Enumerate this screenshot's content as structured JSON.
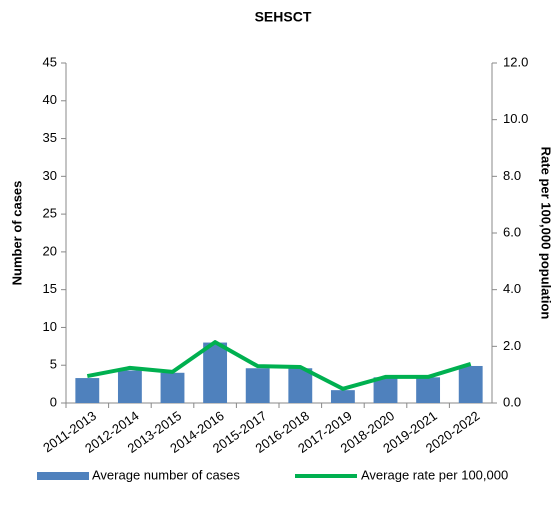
{
  "chart_data": {
    "type": "bar-line",
    "title": "SEHSCT",
    "categories": [
      "2011-2013",
      "2012-2014",
      "2013-2015",
      "2014-2016",
      "2015-2017",
      "2016-2018",
      "2017-2019",
      "2018-2020",
      "2019-2021",
      "2020-2022"
    ],
    "series": [
      {
        "name": "Average number of cases",
        "type": "bar",
        "color": "#4f81bd",
        "values": [
          3.3,
          4.3,
          4.0,
          8.0,
          4.6,
          4.6,
          1.7,
          3.4,
          3.4,
          4.9
        ]
      },
      {
        "name": "Average rate per 100,000",
        "type": "line",
        "color": "#00b050",
        "axis": "y2",
        "values": [
          0.95,
          1.24,
          1.1,
          2.15,
          1.3,
          1.27,
          0.5,
          0.92,
          0.92,
          1.38
        ]
      }
    ],
    "ylabel": "Number of cases",
    "y2label": "Rate per 100,000 population",
    "ylim": [
      0,
      45
    ],
    "yticks": [
      0,
      5,
      10,
      15,
      20,
      25,
      30,
      35,
      40,
      45
    ],
    "y2lim": [
      0,
      12
    ],
    "y2ticks": [
      {
        "value": 0,
        "label": "0.0"
      },
      {
        "value": 2,
        "label": "2.0"
      },
      {
        "value": 4,
        "label": "4.0"
      },
      {
        "value": 6,
        "label": "6.0"
      },
      {
        "value": 8,
        "label": "8.0"
      },
      {
        "value": 10,
        "label": "10.0"
      },
      {
        "value": 12,
        "label": "12.0"
      }
    ],
    "legend": "bottom"
  }
}
